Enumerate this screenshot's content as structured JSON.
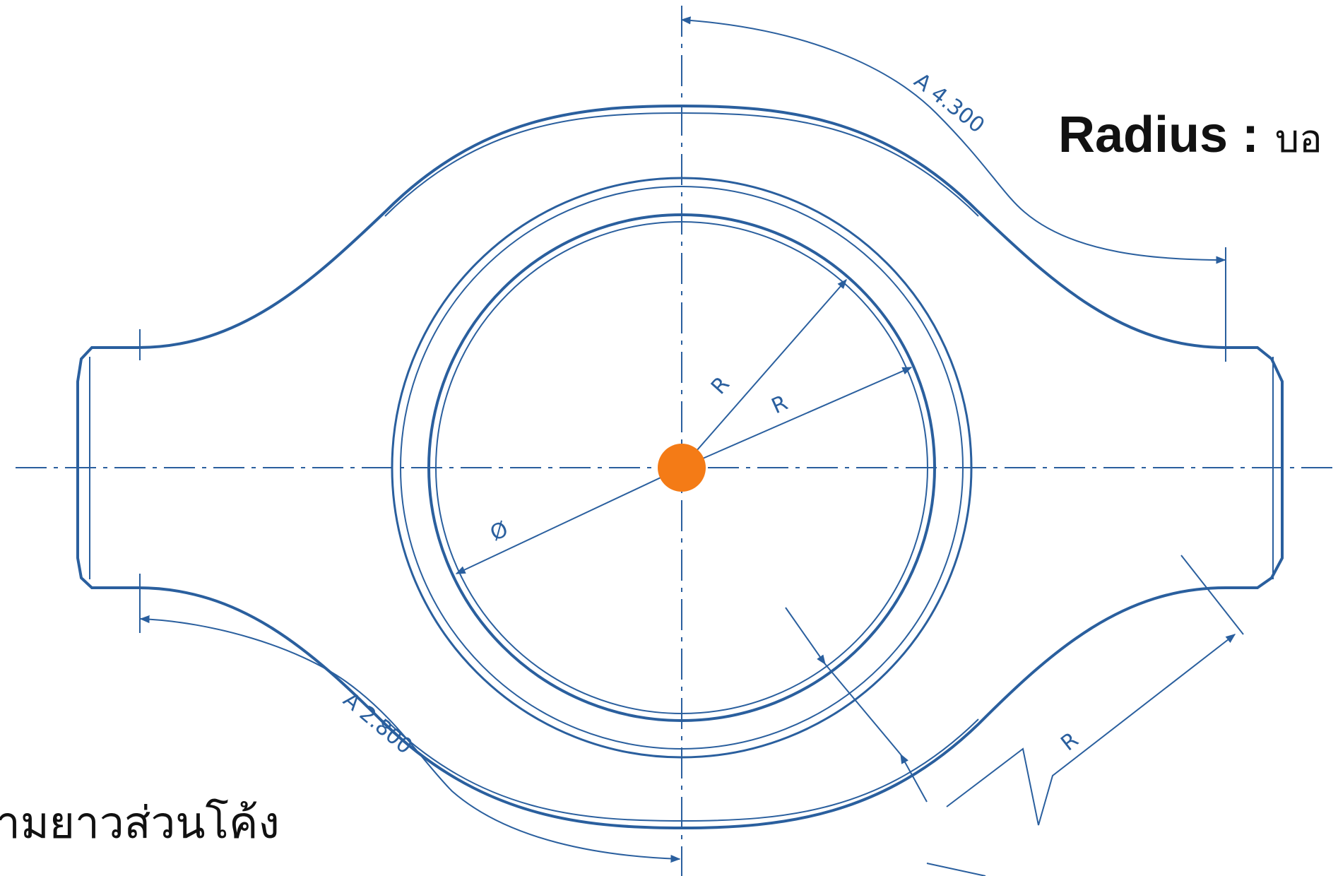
{
  "colors": {
    "line": "#2a5f9e",
    "center_point": "#f47b16",
    "text": "#111111"
  },
  "dimensions": {
    "arc_top": "A 4.300",
    "arc_bottom": "A 2.800",
    "radius_inner_1": "R",
    "radius_inner_2": "R",
    "diameter": "Ø",
    "radius_jogged": "R"
  },
  "captions": {
    "radius_key": "Radius :",
    "radius_value": "บอ",
    "arc_length": "ามยาวส่วนโค้ง"
  }
}
